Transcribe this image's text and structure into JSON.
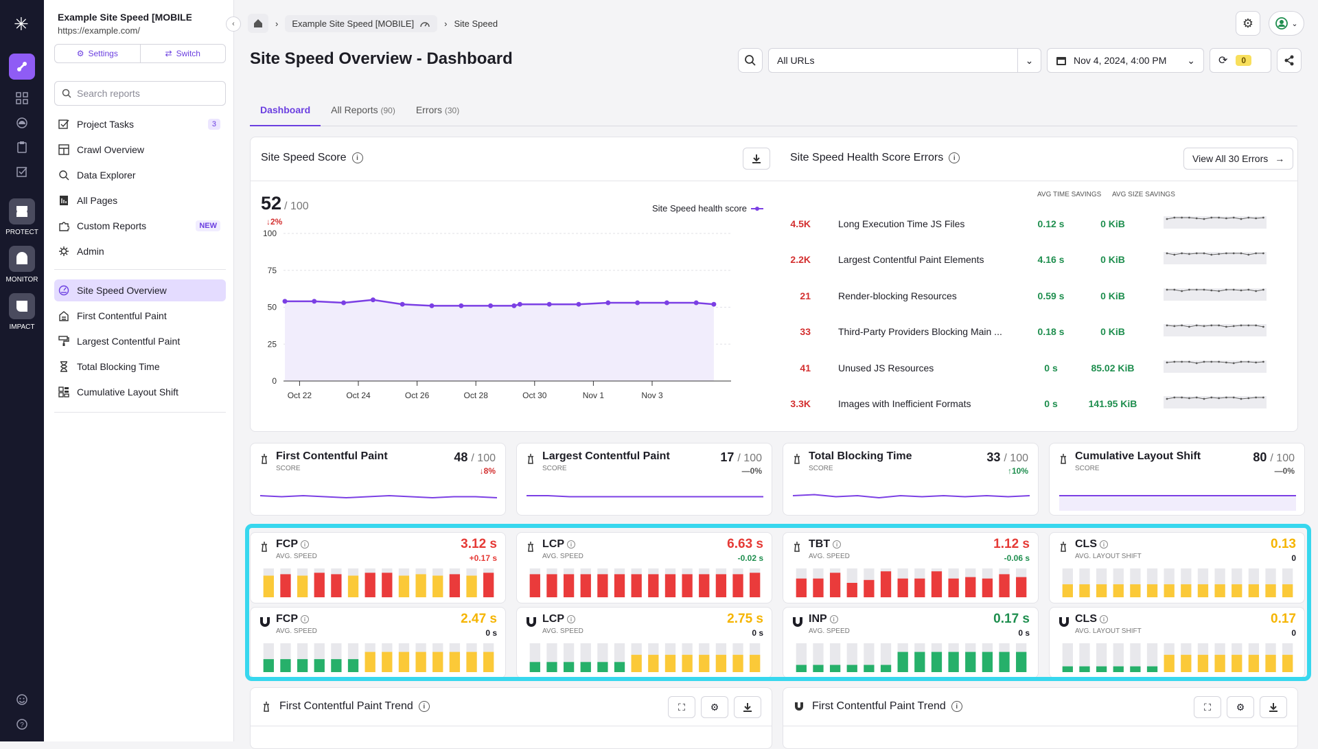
{
  "rail": {
    "products": [
      "PROTECT",
      "MONITOR",
      "IMPACT"
    ]
  },
  "sidebar": {
    "project_title": "Example Site Speed [MOBILE]",
    "project_url": "https://example.com/",
    "settings_label": "Settings",
    "switch_label": "Switch",
    "search_placeholder": "Search reports",
    "nav": [
      {
        "label": "Project Tasks",
        "badge": "3"
      },
      {
        "label": "Crawl Overview"
      },
      {
        "label": "Data Explorer"
      },
      {
        "label": "All Pages"
      },
      {
        "label": "Custom Reports",
        "tag": "NEW"
      },
      {
        "label": "Admin"
      }
    ],
    "reports": [
      {
        "label": "Site Speed Overview"
      },
      {
        "label": "First Contentful Paint"
      },
      {
        "label": "Largest Contentful Paint"
      },
      {
        "label": "Total Blocking Time"
      },
      {
        "label": "Cumulative Layout Shift"
      }
    ]
  },
  "breadcrumb": {
    "project": "Example Site Speed [MOBILE]",
    "current": "Site Speed"
  },
  "page_title": "Site Speed Overview - Dashboard",
  "filters": {
    "url_filter": "All URLs",
    "date": "Nov 4, 2024, 4:00 PM",
    "refresh_count": "0"
  },
  "tabs": [
    {
      "label": "Dashboard",
      "count": ""
    },
    {
      "label": "All Reports",
      "count": "(90)"
    },
    {
      "label": "Errors",
      "count": "(30)"
    }
  ],
  "score_card": {
    "title": "Site Speed Score",
    "score": "52",
    "max": "/ 100",
    "delta": "2%",
    "legend": "Site Speed health score"
  },
  "errors_card": {
    "title": "Site Speed Health Score Errors",
    "view_all": "View All 30 Errors",
    "col_time": "AVG TIME SAVINGS",
    "col_size": "AVG SIZE SAVINGS",
    "rows": [
      {
        "count": "4.5K",
        "name": "Long Execution Time JS Files",
        "time": "0.12 s",
        "size": "0 KiB"
      },
      {
        "count": "2.2K",
        "name": "Largest Contentful Paint Elements",
        "time": "4.16 s",
        "size": "0 KiB"
      },
      {
        "count": "21",
        "name": "Render-blocking Resources",
        "time": "0.59 s",
        "size": "0 KiB"
      },
      {
        "count": "33",
        "name": "Third-Party Providers Blocking Main ...",
        "time": "0.18 s",
        "size": "0 KiB"
      },
      {
        "count": "41",
        "name": "Unused JS Resources",
        "time": "0 s",
        "size": "85.02 KiB"
      },
      {
        "count": "3.3K",
        "name": "Images with Inefficient Formats",
        "time": "0 s",
        "size": "141.95 KiB"
      }
    ]
  },
  "chart_data": {
    "type": "area",
    "title": "Site Speed Score",
    "series": [
      {
        "name": "Site Speed health score",
        "values": [
          54,
          54,
          53,
          55,
          52,
          51,
          51,
          51,
          51,
          52,
          52,
          52,
          53,
          53,
          53,
          53,
          52
        ],
        "x": [
          0,
          2,
          4,
          6,
          8,
          10,
          12,
          14,
          15.6,
          16,
          18,
          20,
          22,
          24,
          26,
          28,
          29.2
        ]
      }
    ],
    "x_ticks": [
      "Oct 22",
      "Oct 24",
      "Oct 26",
      "Oct 28",
      "Oct 30",
      "Nov 1",
      "Nov 3"
    ],
    "y_ticks": [
      "100",
      "75",
      "50",
      "25",
      "0"
    ],
    "ylim": [
      0,
      100
    ],
    "color": "#7b3fe4"
  },
  "metrics": [
    {
      "title": "First Contentful Paint",
      "sub": "SCORE",
      "value": "48",
      "max": "/ 100",
      "delta": "8%",
      "dir": "down",
      "color": "#d32f2f",
      "trend": [
        50,
        49,
        50,
        49,
        48,
        49,
        50,
        49,
        48,
        49,
        49,
        48
      ]
    },
    {
      "title": "Largest Contentful Paint",
      "sub": "SCORE",
      "value": "17",
      "max": "/ 100",
      "delta": "0%",
      "dir": "flat",
      "color": "#555",
      "trend": [
        18,
        18,
        17,
        17,
        17,
        17,
        17,
        17,
        17,
        17,
        17,
        17
      ]
    },
    {
      "title": "Total Blocking Time",
      "sub": "SCORE",
      "value": "33",
      "max": "/ 100",
      "delta": "10%",
      "dir": "up",
      "color": "#1e8e4e",
      "trend": [
        34,
        35,
        33,
        34,
        32,
        34,
        33,
        34,
        33,
        34,
        33,
        34
      ]
    },
    {
      "title": "Cumulative Layout Shift",
      "sub": "SCORE",
      "value": "80",
      "max": "/ 100",
      "delta": "0%",
      "dir": "flat",
      "color": "#555",
      "trend": [
        80,
        80,
        80,
        80,
        80,
        80,
        80,
        80,
        80,
        80,
        80,
        80
      ]
    }
  ],
  "lab_vitals": [
    {
      "abbr": "FCP",
      "sub": "AVG. SPEED",
      "value": "3.12 s",
      "delta": "+0.17 s",
      "vcolor": "#e53935",
      "bars": [
        [
          "y",
          0.75
        ],
        [
          "r",
          0.8
        ],
        [
          "y",
          0.75
        ],
        [
          "r",
          0.85
        ],
        [
          "r",
          0.8
        ],
        [
          "y",
          0.75
        ],
        [
          "r",
          0.85
        ],
        [
          "r",
          0.85
        ],
        [
          "y",
          0.75
        ],
        [
          "y",
          0.8
        ],
        [
          "y",
          0.75
        ],
        [
          "r",
          0.8
        ],
        [
          "y",
          0.75
        ],
        [
          "r",
          0.85
        ]
      ]
    },
    {
      "abbr": "LCP",
      "sub": "AVG. SPEED",
      "value": "6.63 s",
      "delta": "-0.02 s",
      "vcolor": "#e53935",
      "bars": [
        [
          "r",
          0.8
        ],
        [
          "r",
          0.8
        ],
        [
          "r",
          0.8
        ],
        [
          "r",
          0.8
        ],
        [
          "r",
          0.8
        ],
        [
          "r",
          0.8
        ],
        [
          "r",
          0.8
        ],
        [
          "r",
          0.8
        ],
        [
          "r",
          0.8
        ],
        [
          "r",
          0.8
        ],
        [
          "r",
          0.8
        ],
        [
          "r",
          0.8
        ],
        [
          "r",
          0.8
        ],
        [
          "r",
          0.85
        ]
      ]
    },
    {
      "abbr": "TBT",
      "sub": "AVG. SPEED",
      "value": "1.12 s",
      "delta": "-0.06 s",
      "vcolor": "#e53935",
      "bars": [
        [
          "r",
          0.65
        ],
        [
          "r",
          0.65
        ],
        [
          "r",
          0.85
        ],
        [
          "r",
          0.5
        ],
        [
          "r",
          0.6
        ],
        [
          "r",
          0.9
        ],
        [
          "r",
          0.65
        ],
        [
          "r",
          0.65
        ],
        [
          "r",
          0.9
        ],
        [
          "r",
          0.65
        ],
        [
          "r",
          0.7
        ],
        [
          "r",
          0.65
        ],
        [
          "r",
          0.8
        ],
        [
          "r",
          0.7
        ]
      ]
    },
    {
      "abbr": "CLS",
      "sub": "AVG. LAYOUT SHIFT",
      "value": "0.13",
      "delta": "0",
      "vcolor": "#f5b400",
      "bars": [
        [
          "y",
          0.45
        ],
        [
          "y",
          0.45
        ],
        [
          "y",
          0.45
        ],
        [
          "y",
          0.45
        ],
        [
          "y",
          0.45
        ],
        [
          "y",
          0.45
        ],
        [
          "y",
          0.45
        ],
        [
          "y",
          0.45
        ],
        [
          "y",
          0.45
        ],
        [
          "y",
          0.45
        ],
        [
          "y",
          0.45
        ],
        [
          "y",
          0.45
        ],
        [
          "y",
          0.45
        ],
        [
          "y",
          0.45
        ]
      ]
    }
  ],
  "field_vitals": [
    {
      "abbr": "FCP",
      "sub": "AVG. SPEED",
      "value": "2.47 s",
      "delta": "0 s",
      "vcolor": "#f5b400",
      "bars": [
        [
          "g",
          0.45
        ],
        [
          "g",
          0.45
        ],
        [
          "g",
          0.45
        ],
        [
          "g",
          0.45
        ],
        [
          "g",
          0.45
        ],
        [
          "g",
          0.45
        ],
        [
          "y",
          0.7
        ],
        [
          "y",
          0.7
        ],
        [
          "y",
          0.7
        ],
        [
          "y",
          0.7
        ],
        [
          "y",
          0.7
        ],
        [
          "y",
          0.7
        ],
        [
          "y",
          0.7
        ],
        [
          "y",
          0.7
        ]
      ]
    },
    {
      "abbr": "LCP",
      "sub": "AVG. SPEED",
      "value": "2.75 s",
      "delta": "0 s",
      "vcolor": "#f5b400",
      "bars": [
        [
          "g",
          0.35
        ],
        [
          "g",
          0.35
        ],
        [
          "g",
          0.35
        ],
        [
          "g",
          0.35
        ],
        [
          "g",
          0.35
        ],
        [
          "g",
          0.35
        ],
        [
          "y",
          0.6
        ],
        [
          "y",
          0.6
        ],
        [
          "y",
          0.6
        ],
        [
          "y",
          0.6
        ],
        [
          "y",
          0.6
        ],
        [
          "y",
          0.6
        ],
        [
          "y",
          0.6
        ],
        [
          "y",
          0.6
        ]
      ]
    },
    {
      "abbr": "INP",
      "sub": "AVG. SPEED",
      "value": "0.17 s",
      "delta": "0 s",
      "vcolor": "#1e8e4e",
      "bars": [
        [
          "g",
          0.25
        ],
        [
          "g",
          0.25
        ],
        [
          "g",
          0.25
        ],
        [
          "g",
          0.25
        ],
        [
          "g",
          0.25
        ],
        [
          "g",
          0.25
        ],
        [
          "g",
          0.7
        ],
        [
          "g",
          0.7
        ],
        [
          "g",
          0.7
        ],
        [
          "g",
          0.7
        ],
        [
          "g",
          0.7
        ],
        [
          "g",
          0.7
        ],
        [
          "g",
          0.7
        ],
        [
          "g",
          0.7
        ]
      ]
    },
    {
      "abbr": "CLS",
      "sub": "AVG. LAYOUT SHIFT",
      "value": "0.17",
      "delta": "0",
      "vcolor": "#f5b400",
      "bars": [
        [
          "g",
          0.2
        ],
        [
          "g",
          0.2
        ],
        [
          "g",
          0.2
        ],
        [
          "g",
          0.2
        ],
        [
          "g",
          0.2
        ],
        [
          "g",
          0.2
        ],
        [
          "y",
          0.6
        ],
        [
          "y",
          0.6
        ],
        [
          "y",
          0.6
        ],
        [
          "y",
          0.6
        ],
        [
          "y",
          0.6
        ],
        [
          "y",
          0.6
        ],
        [
          "y",
          0.6
        ],
        [
          "y",
          0.6
        ]
      ]
    }
  ],
  "trend_cards": [
    {
      "title": "First Contentful Paint Trend"
    },
    {
      "title": "First Contentful Paint Trend"
    }
  ]
}
